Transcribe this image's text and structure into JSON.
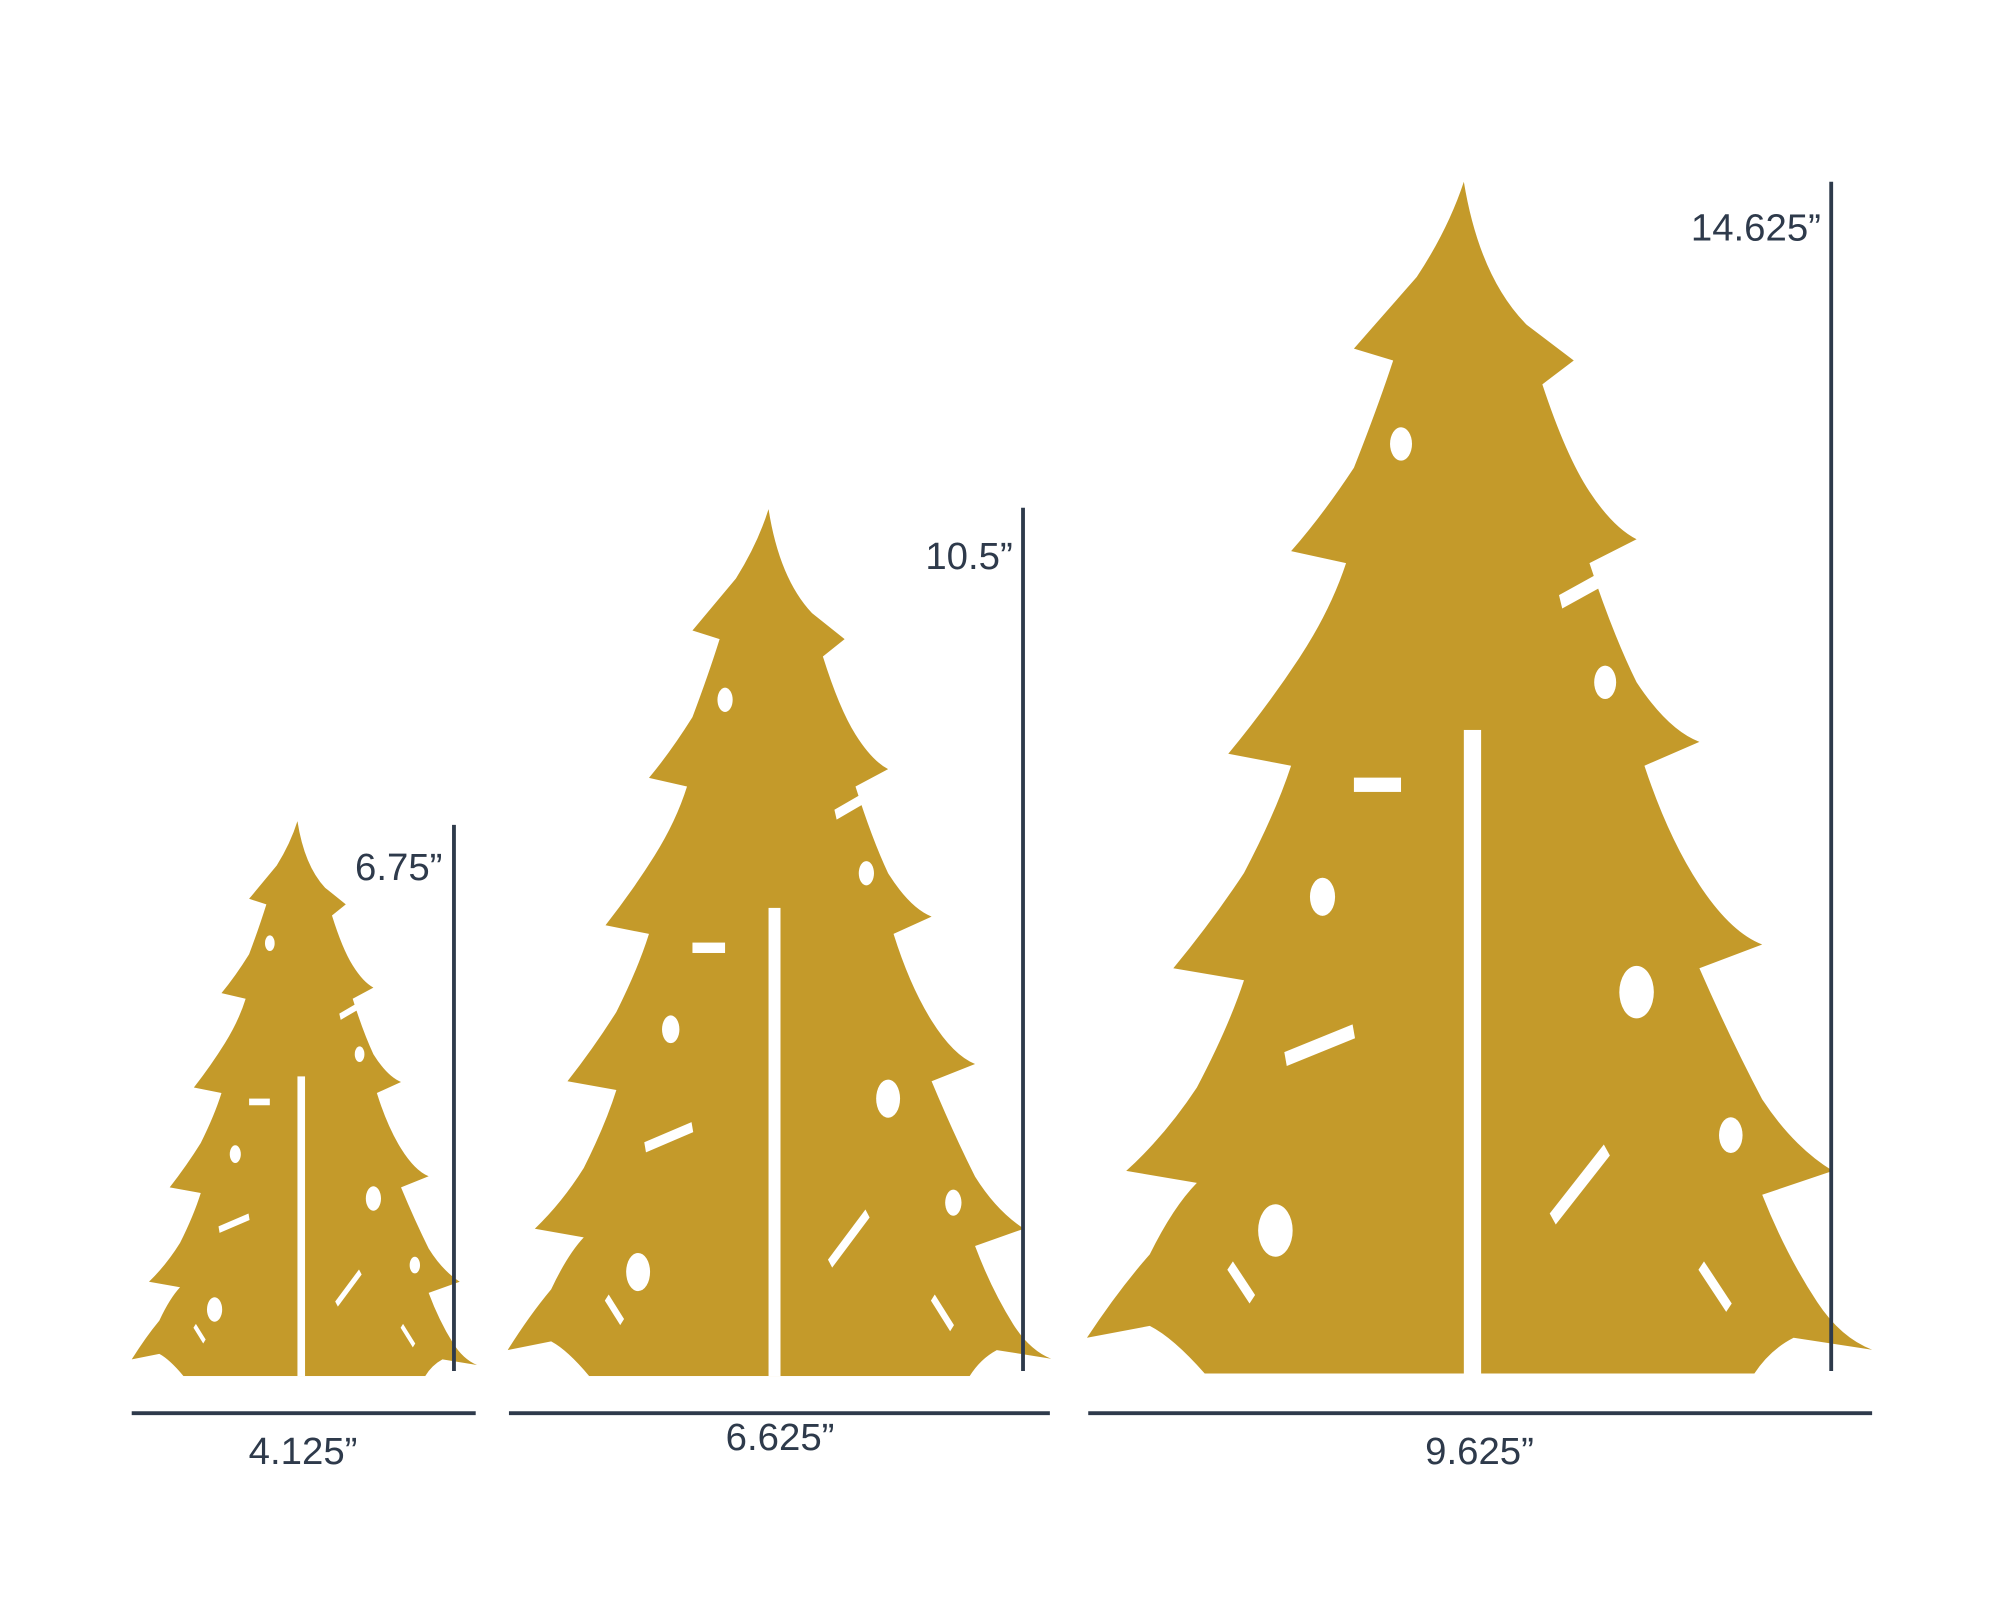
{
  "trees": [
    {
      "height": "6.75”",
      "width": "4.125”"
    },
    {
      "height": "10.5”",
      "width": "6.625”"
    },
    {
      "height": "14.625”",
      "width": "9.625”"
    }
  ]
}
